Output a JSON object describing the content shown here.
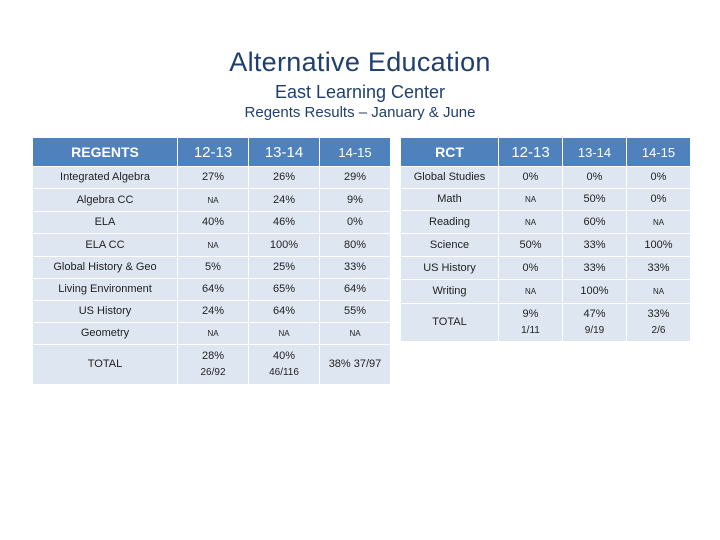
{
  "header": {
    "title": "Alternative Education",
    "subtitle": "East Learning Center",
    "caption": "Regents Results – January & June"
  },
  "regents": {
    "columns": [
      "REGENTS",
      "12-13",
      "13-14",
      "14-15"
    ],
    "rows": [
      [
        "Integrated Algebra",
        "27%",
        "26%",
        "29%"
      ],
      [
        "Algebra CC",
        "NA",
        "24%",
        "9%"
      ],
      [
        "ELA",
        "40%",
        "46%",
        "0%"
      ],
      [
        "ELA CC",
        "NA",
        "100%",
        "80%"
      ],
      [
        "Global History & Geo",
        "5%",
        "25%",
        "33%"
      ],
      [
        "Living Environment",
        "64%",
        "65%",
        "64%"
      ],
      [
        "US History",
        "24%",
        "64%",
        "55%"
      ],
      [
        "Geometry",
        "NA",
        "NA",
        "NA"
      ]
    ],
    "total": {
      "label": "TOTAL",
      "y1213_pct": "28%",
      "y1213_count": "26/92",
      "y1314_pct": "40%",
      "y1314_count": "46/116",
      "y1415": "38% 37/97"
    }
  },
  "rct": {
    "columns": [
      "RCT",
      "12-13",
      "13-14",
      "14-15"
    ],
    "rows": [
      [
        "Global Studies",
        "0%",
        "0%",
        "0%"
      ],
      [
        "Math",
        "NA",
        "50%",
        "0%"
      ],
      [
        "Reading",
        "NA",
        "60%",
        "NA"
      ],
      [
        "Science",
        "50%",
        "33%",
        "100%"
      ],
      [
        "US History",
        "0%",
        "33%",
        "33%"
      ],
      [
        "Writing",
        "NA",
        "100%",
        "NA"
      ]
    ],
    "total": {
      "label": "TOTAL",
      "y1213_pct": "9%",
      "y1213_count": "1/11",
      "y1314_pct": "47%",
      "y1314_count": "9/19",
      "y1415_pct": "33%",
      "y1415_count": "2/6"
    }
  }
}
